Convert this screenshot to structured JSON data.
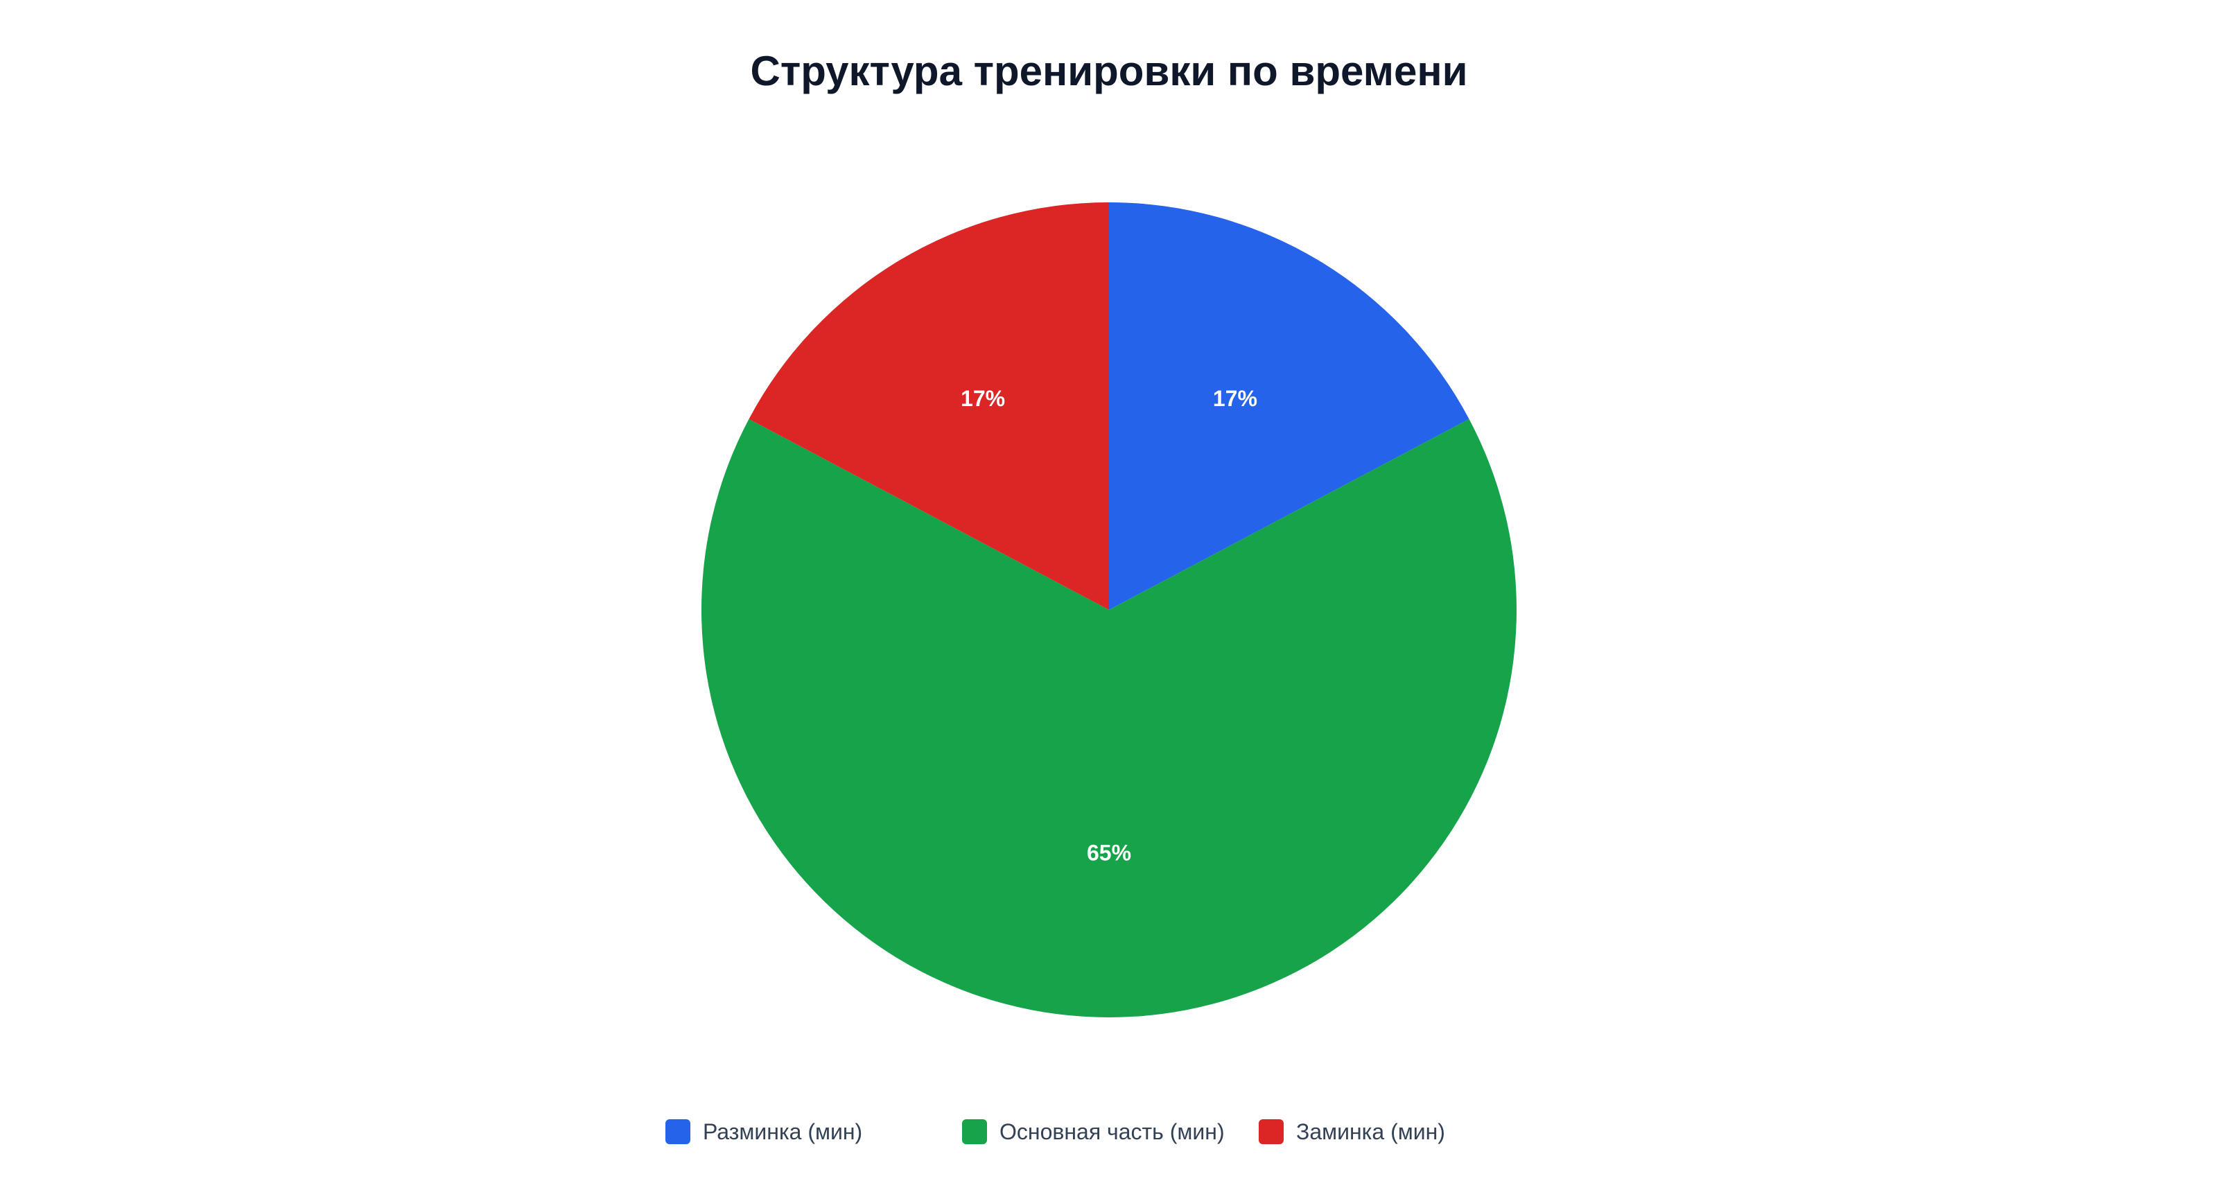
{
  "chart_data": {
    "type": "pie",
    "title": "Структура тренировки по времени",
    "slices": [
      {
        "label": "Разминка (мин)",
        "value": 10,
        "percent_label": "17%",
        "color": "#2563eb"
      },
      {
        "label": "Основная часть (мин)",
        "value": 38,
        "percent_label": "65%",
        "color": "#16a34a"
      },
      {
        "label": "Заминка (мин)",
        "value": 10,
        "percent_label": "17%",
        "color": "#dc2626"
      }
    ],
    "legend_position": "bottom"
  }
}
